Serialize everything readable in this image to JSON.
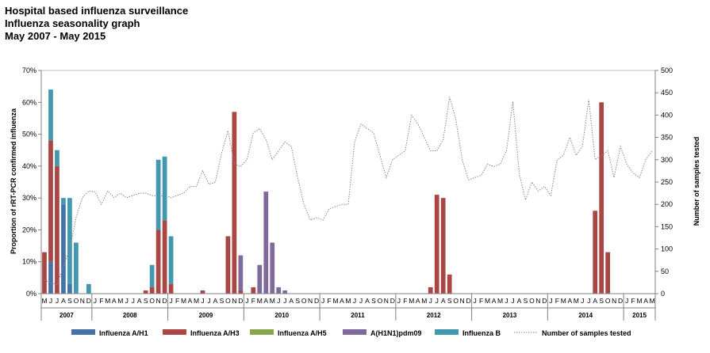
{
  "chart_data": {
    "type": "bar",
    "title": [
      "Hospital based influenza surveillance",
      "Influenza seasonality graph",
      "May 2007 - May 2015"
    ],
    "ylabel": "Proportion of rRT-PCR confirmed influenza",
    "y2label": "Number of samples tested",
    "ylim": [
      0,
      70
    ],
    "y2lim": [
      0,
      500
    ],
    "yticks": [
      "0%",
      "10%",
      "20%",
      "30%",
      "40%",
      "50%",
      "60%",
      "70%"
    ],
    "y2ticks": [
      "0",
      "50",
      "100",
      "150",
      "200",
      "250",
      "300",
      "350",
      "400",
      "450",
      "500"
    ],
    "stacked": true,
    "legend_position": "bottom",
    "year_groups": [
      {
        "label": "2007",
        "count": 8
      },
      {
        "label": "2008",
        "count": 12
      },
      {
        "label": "2009",
        "count": 12
      },
      {
        "label": "2010",
        "count": 12
      },
      {
        "label": "2011",
        "count": 12
      },
      {
        "label": "2012",
        "count": 12
      },
      {
        "label": "2013",
        "count": 12
      },
      {
        "label": "2014",
        "count": 12
      },
      {
        "label": "2015",
        "count": 5
      }
    ],
    "months": [
      "M",
      "J",
      "J",
      "A",
      "S",
      "O",
      "N",
      "D",
      "J",
      "F",
      "M",
      "A",
      "M",
      "J",
      "J",
      "A",
      "S",
      "O",
      "N",
      "D",
      "J",
      "F",
      "M",
      "A",
      "M",
      "J",
      "J",
      "A",
      "S",
      "O",
      "N",
      "D",
      "J",
      "F",
      "M",
      "A",
      "M",
      "J",
      "J",
      "A",
      "S",
      "O",
      "N",
      "D",
      "J",
      "F",
      "M",
      "A",
      "M",
      "J",
      "J",
      "A",
      "S",
      "O",
      "N",
      "D",
      "J",
      "F",
      "M",
      "A",
      "M",
      "J",
      "J",
      "A",
      "S",
      "O",
      "N",
      "D",
      "J",
      "F",
      "M",
      "A",
      "M",
      "J",
      "J",
      "A",
      "S",
      "O",
      "N",
      "D",
      "J",
      "F",
      "M",
      "A",
      "M",
      "J",
      "J",
      "A",
      "S",
      "O",
      "N",
      "D",
      "J",
      "F",
      "M",
      "A",
      "M"
    ],
    "series": [
      {
        "name": "Influenza A/H1",
        "color": "#4572A7",
        "type": "bar",
        "values": [
          0,
          10,
          0,
          28,
          3,
          0,
          0,
          0,
          0,
          0,
          0,
          0,
          0,
          0,
          0,
          0,
          0,
          0,
          0,
          0,
          0,
          0,
          0,
          0,
          0,
          0,
          0,
          0,
          0,
          0,
          0,
          0,
          0,
          0,
          0,
          0,
          0,
          0,
          0,
          0,
          0,
          0,
          0,
          0,
          0,
          0,
          0,
          0,
          0,
          0,
          0,
          0,
          0,
          0,
          0,
          0,
          0,
          0,
          0,
          0,
          0,
          0,
          0,
          0,
          0,
          0,
          0,
          0,
          0,
          0,
          0,
          0,
          0,
          0,
          0,
          0,
          0,
          0,
          0,
          0,
          0,
          0,
          0,
          0,
          0,
          0,
          0,
          0,
          0,
          0,
          0,
          0,
          0,
          0,
          0,
          0,
          0
        ]
      },
      {
        "name": "Influenza A/H3",
        "color": "#AA4643",
        "type": "bar",
        "values": [
          13,
          38,
          40,
          0,
          0,
          0,
          0,
          0,
          0,
          0,
          0,
          0,
          0,
          0,
          0,
          0,
          1,
          2,
          20,
          23,
          3,
          0,
          0,
          0,
          0,
          1,
          0,
          0,
          0,
          18,
          57,
          1,
          0,
          2,
          0,
          0,
          0,
          0,
          0,
          0,
          0,
          0,
          0,
          0,
          0,
          0,
          0,
          0,
          0,
          0,
          0,
          0,
          0,
          0,
          0,
          0,
          0,
          0,
          0,
          0,
          0,
          2,
          31,
          30,
          6,
          0,
          0,
          0,
          0,
          0,
          0,
          0,
          0,
          0,
          0,
          0,
          0,
          0,
          0,
          0,
          0,
          0,
          0,
          0,
          0,
          0,
          0,
          26,
          60,
          13,
          0,
          0,
          0,
          0,
          0,
          0,
          0
        ]
      },
      {
        "name": "Influenza A/H5",
        "color": "#89A54E",
        "type": "bar",
        "values": [
          0,
          0,
          0,
          0,
          0,
          0,
          0,
          0,
          0,
          0,
          0,
          0,
          0,
          0,
          0,
          0,
          0,
          0,
          0,
          0,
          0,
          0,
          0,
          0,
          0,
          0,
          0,
          0,
          0,
          0,
          0,
          0,
          0,
          0,
          0,
          0,
          0,
          0,
          0,
          0,
          0,
          0,
          0,
          0,
          0,
          0,
          0,
          0,
          0,
          0,
          0,
          0,
          0,
          0,
          0,
          0,
          0,
          0,
          0,
          0,
          0,
          0,
          0,
          0,
          0,
          0,
          0,
          0,
          0,
          0,
          0,
          0,
          0,
          0,
          0,
          0,
          0,
          0,
          0,
          0,
          0,
          0,
          0,
          0,
          0,
          0,
          0,
          0,
          0,
          0,
          0,
          0,
          0,
          0,
          0,
          0,
          0
        ]
      },
      {
        "name": "A(H1N1)pdm09",
        "color": "#80699B",
        "type": "bar",
        "values": [
          0,
          0,
          0,
          0,
          0,
          0,
          0,
          0,
          0,
          0,
          0,
          0,
          0,
          0,
          0,
          0,
          0,
          0,
          0,
          0,
          0,
          0,
          0,
          0,
          0,
          0,
          0,
          0,
          0,
          0,
          0,
          11,
          0,
          0,
          9,
          32,
          16,
          2,
          1,
          0,
          0,
          0,
          0,
          0,
          0,
          0,
          0,
          0,
          0,
          0,
          0,
          0,
          0,
          0,
          0,
          0,
          0,
          0,
          0,
          0,
          0,
          0,
          0,
          0,
          0,
          0,
          0,
          0,
          0,
          0,
          0,
          0,
          0,
          0,
          0,
          0,
          0,
          0,
          0,
          0,
          0,
          0,
          0,
          0,
          0,
          0,
          0,
          0,
          0,
          0,
          0,
          0,
          0,
          0,
          0,
          0,
          0
        ]
      },
      {
        "name": "Influenza B",
        "color": "#4198AF",
        "type": "bar",
        "values": [
          0,
          16,
          5,
          2,
          27,
          16,
          0,
          3,
          0,
          0,
          0,
          0,
          0,
          0,
          0,
          0,
          0,
          7,
          22,
          20,
          15,
          0,
          0,
          0,
          0,
          0,
          0,
          0,
          0,
          0,
          0,
          0,
          0,
          0,
          0,
          0,
          0,
          0,
          0,
          0,
          0,
          0,
          0,
          0,
          0,
          0,
          0,
          0,
          0,
          0,
          0,
          0,
          0,
          0,
          0,
          0,
          0,
          0,
          0,
          0,
          0,
          0,
          0,
          0,
          0,
          0,
          0,
          0,
          0,
          0,
          0,
          0,
          0,
          0,
          0,
          0,
          0,
          0,
          0,
          0,
          0,
          0,
          0,
          0,
          0,
          0,
          0,
          0,
          0,
          0,
          0,
          0,
          0,
          0,
          0,
          0,
          0
        ]
      },
      {
        "name": "Number of samples tested",
        "color": "#888888",
        "type": "line",
        "axis": "right",
        "values": [
          30,
          25,
          20,
          60,
          100,
          170,
          215,
          230,
          228,
          200,
          230,
          215,
          225,
          215,
          220,
          225,
          225,
          220,
          218,
          220,
          215,
          220,
          225,
          240,
          240,
          275,
          245,
          250,
          315,
          365,
          290,
          285,
          300,
          360,
          370,
          345,
          300,
          320,
          340,
          330,
          260,
          200,
          165,
          170,
          165,
          190,
          195,
          200,
          200,
          340,
          380,
          370,
          360,
          310,
          260,
          300,
          310,
          320,
          400,
          380,
          350,
          320,
          320,
          345,
          440,
          390,
          300,
          255,
          260,
          265,
          290,
          285,
          290,
          320,
          430,
          270,
          210,
          250,
          230,
          240,
          220,
          300,
          310,
          350,
          310,
          330,
          435,
          300,
          310,
          320,
          260,
          330,
          290,
          270,
          260,
          300,
          320
        ]
      }
    ]
  }
}
